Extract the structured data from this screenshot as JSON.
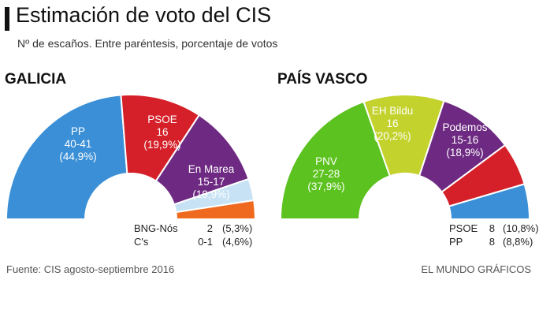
{
  "header": {
    "title": "Estimación de voto del CIS",
    "subtitle": "Nº de escaños. Entre paréntesis, porcentaje de votos"
  },
  "footer": {
    "source": "Fuente: CIS agosto-septiembre 2016",
    "credit": "EL MUNDO GRÁFICOS"
  },
  "chart_data": [
    {
      "type": "pie",
      "shape": "semicircle-donut",
      "title": "GALICIA",
      "series": [
        {
          "name": "PP",
          "seats": "40-41",
          "pct_label": "(44,9%)",
          "pct": 44.9,
          "color": "#3a8fd6"
        },
        {
          "name": "PSOE",
          "seats": "16",
          "pct_label": "(19,9%)",
          "pct": 19.9,
          "color": "#d52029"
        },
        {
          "name": "En Marea",
          "seats": "15-17",
          "pct_label": "(19,9%)",
          "pct": 19.9,
          "color": "#6e2a82"
        },
        {
          "name": "BNG-Nós",
          "seats": "2",
          "pct_label": "(5,3%)",
          "pct": 5.3,
          "color": "#c6e2f4"
        },
        {
          "name": "C's",
          "seats": "0-1",
          "pct_label": "(4,6%)",
          "pct": 4.6,
          "color": "#ef6a1f"
        }
      ]
    },
    {
      "type": "pie",
      "shape": "semicircle-donut",
      "title": "PAÍS VASCO",
      "series": [
        {
          "name": "PNV",
          "seats": "27-28",
          "pct_label": "(37,9%)",
          "pct": 37.9,
          "color": "#5cc21f"
        },
        {
          "name": "EH Bildu",
          "seats": "16",
          "pct_label": "(20,2%)",
          "pct": 20.2,
          "color": "#c4d22e"
        },
        {
          "name": "Podemos",
          "seats": "15-16",
          "pct_label": "(18,9%)",
          "pct": 18.9,
          "color": "#6e2a82"
        },
        {
          "name": "PSOE",
          "seats": "8",
          "pct_label": "(10,8%)",
          "pct": 10.8,
          "color": "#d52029"
        },
        {
          "name": "PP",
          "seats": "8",
          "pct_label": "(8,8%)",
          "pct": 8.8,
          "color": "#3a8fd6"
        }
      ]
    }
  ]
}
